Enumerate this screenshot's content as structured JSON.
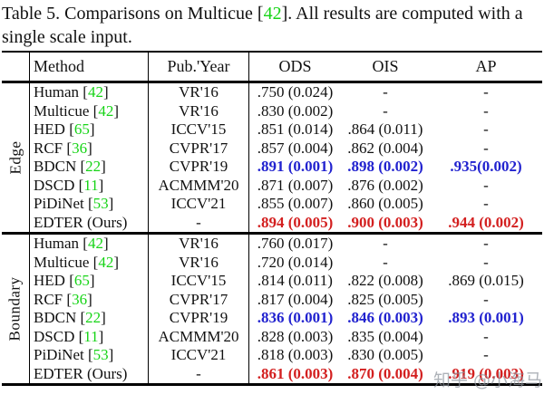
{
  "caption": {
    "line1_pre": "Table 5. Comparisons on Multicue [",
    "line1_ref": "42",
    "line1_post": "].  All results are computed",
    "line2": "with a single scale input."
  },
  "table": {
    "headers": {
      "method": "Method",
      "pub": "Pub.'Year",
      "ods": "ODS",
      "ois": "OIS",
      "ap": "AP"
    },
    "sections": [
      {
        "label": "Edge",
        "rows": [
          {
            "method": "Human",
            "ref": "42",
            "pub": "VR'16",
            "ods": ".750 (0.024)",
            "ois": "-",
            "ap": "-",
            "style": "normal"
          },
          {
            "method": "Multicue",
            "ref": "42",
            "pub": "VR'16",
            "ods": ".830 (0.002)",
            "ois": "-",
            "ap": "-",
            "style": "normal"
          },
          {
            "method": "HED",
            "ref": "65",
            "pub": "ICCV'15",
            "ods": ".851 (0.014)",
            "ois": ".864 (0.011)",
            "ap": "-",
            "style": "normal"
          },
          {
            "method": "RCF",
            "ref": "36",
            "pub": "CVPR'17",
            "ods": ".857 (0.004)",
            "ois": ".862 (0.004)",
            "ap": "-",
            "style": "normal"
          },
          {
            "method": "BDCN",
            "ref": "22",
            "pub": "CVPR'19",
            "ods": ".891 (0.001)",
            "ois": ".898 (0.002)",
            "ap": ".935(0.002)",
            "style": "blue"
          },
          {
            "method": "DSCD",
            "ref": "11",
            "pub": "ACMMM'20",
            "ods": ".871 (0.007)",
            "ois": ".876 (0.002)",
            "ap": "-",
            "style": "normal"
          },
          {
            "method": "PiDiNet",
            "ref": "53",
            "pub": "ICCV'21",
            "ods": ".855 (0.007)",
            "ois": ".860 (0.005)",
            "ap": "-",
            "style": "normal"
          },
          {
            "method": "EDTER (Ours)",
            "ref": null,
            "pub": "-",
            "ods": ".894 (0.005)",
            "ois": ".900 (0.003)",
            "ap": ".944 (0.002)",
            "style": "red"
          }
        ]
      },
      {
        "label": "Boundary",
        "rows": [
          {
            "method": "Human",
            "ref": "42",
            "pub": "VR'16",
            "ods": ".760 (0.017)",
            "ois": "-",
            "ap": "-",
            "style": "normal"
          },
          {
            "method": "Multicue",
            "ref": "42",
            "pub": "VR'16",
            "ods": ".720 (0.014)",
            "ois": "-",
            "ap": "-",
            "style": "normal"
          },
          {
            "method": "HED",
            "ref": "65",
            "pub": "ICCV'15",
            "ods": ".814 (0.011)",
            "ois": ".822 (0.008)",
            "ap": ".869 (0.015)",
            "style": "normal"
          },
          {
            "method": "RCF",
            "ref": "36",
            "pub": "CVPR'17",
            "ods": ".817 (0.004)",
            "ois": ".825 (0.005)",
            "ap": "-",
            "style": "normal"
          },
          {
            "method": "BDCN",
            "ref": "22",
            "pub": "CVPR'19",
            "ods": ".836 (0.001)",
            "ois": ".846 (0.003)",
            "ap": ".893 (0.001)",
            "style": "blue"
          },
          {
            "method": "DSCD",
            "ref": "11",
            "pub": "ACMMM'20",
            "ods": ".828 (0.003)",
            "ois": ".835 (0.004)",
            "ap": "-",
            "style": "normal"
          },
          {
            "method": "PiDiNet",
            "ref": "53",
            "pub": "ICCV'21",
            "ods": ".818 (0.003)",
            "ois": ".830 (0.005)",
            "ap": "-",
            "style": "normal"
          },
          {
            "method": "EDTER (Ours)",
            "ref": null,
            "pub": "-",
            "ods": ".861 (0.003)",
            "ois": ".870 (0.004)",
            "ap": ".919 (0.003)",
            "style": "red"
          }
        ]
      }
    ]
  },
  "watermark": {
    "text": "知乎 @小海马"
  },
  "colors": {
    "cite_green": "#17d417",
    "highlight_blue": "#2122cf",
    "highlight_red": "#d31f1f",
    "watermark_grey": "#8d939c"
  }
}
